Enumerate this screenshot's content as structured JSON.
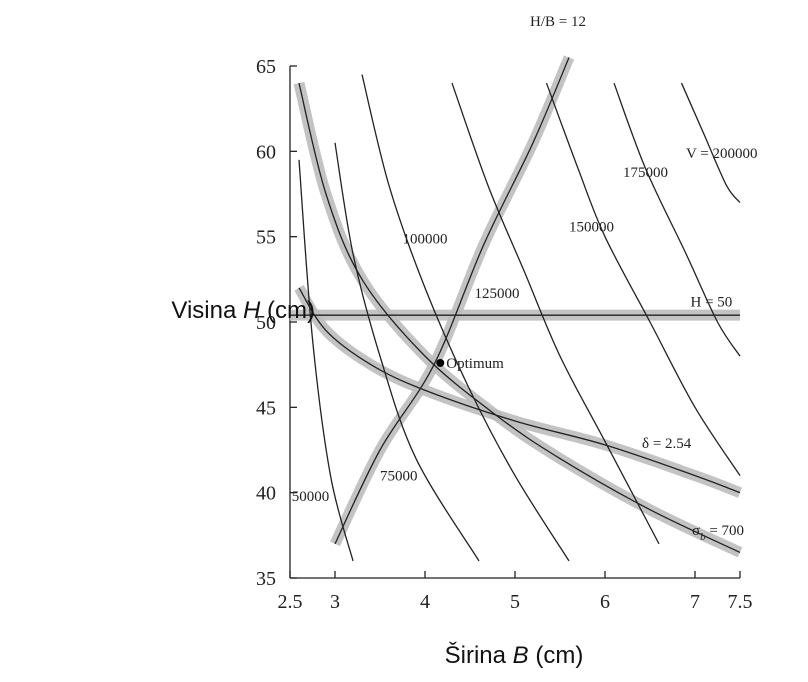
{
  "chart_data": {
    "type": "line",
    "title": "",
    "xlabel": {
      "prefix": "Širina ",
      "var": "B",
      "suffix": " (cm)"
    },
    "ylabel": {
      "prefix": "Visina ",
      "var": "H",
      "suffix": " (cm)"
    },
    "xlim": [
      2.5,
      7.5
    ],
    "ylim": [
      35,
      65
    ],
    "x_ticks": [
      {
        "value": 2.5,
        "label": "2.5"
      },
      {
        "value": 3,
        "label": "3"
      },
      {
        "value": 4,
        "label": "4"
      },
      {
        "value": 5,
        "label": "5"
      },
      {
        "value": 6,
        "label": "6"
      },
      {
        "value": 7,
        "label": "7"
      },
      {
        "value": 7.5,
        "label": "7.5"
      }
    ],
    "y_ticks": [
      {
        "value": 35,
        "label": "35"
      },
      {
        "value": 40,
        "label": "40"
      },
      {
        "value": 45,
        "label": "45"
      },
      {
        "value": 50,
        "label": "50"
      },
      {
        "value": 55,
        "label": "55"
      },
      {
        "value": 60,
        "label": "60"
      },
      {
        "value": 65,
        "label": "65"
      }
    ],
    "volume_contours": [
      {
        "label": "50000",
        "points": [
          [
            2.6,
            59.5
          ],
          [
            2.75,
            49
          ],
          [
            2.95,
            41
          ],
          [
            3.2,
            36
          ]
        ]
      },
      {
        "label": "75000",
        "points": [
          [
            3.0,
            60.5
          ],
          [
            3.2,
            54
          ],
          [
            3.5,
            48
          ],
          [
            3.9,
            42
          ],
          [
            4.6,
            36
          ]
        ]
      },
      {
        "label": "100000",
        "points": [
          [
            3.3,
            64.5
          ],
          [
            3.6,
            58
          ],
          [
            4.0,
            52
          ],
          [
            4.5,
            46
          ],
          [
            5.0,
            41
          ],
          [
            5.6,
            36
          ]
        ]
      },
      {
        "label": "125000",
        "points": [
          [
            4.3,
            64
          ],
          [
            4.7,
            58
          ],
          [
            5.1,
            53
          ],
          [
            5.5,
            48
          ],
          [
            6.0,
            43
          ],
          [
            6.6,
            37
          ]
        ]
      },
      {
        "label": "150000",
        "points": [
          [
            5.35,
            64
          ],
          [
            5.7,
            59
          ],
          [
            6.0,
            55
          ],
          [
            6.5,
            50
          ],
          [
            7.0,
            45
          ],
          [
            7.5,
            41
          ]
        ]
      },
      {
        "label": "175000",
        "points": [
          [
            6.1,
            64
          ],
          [
            6.45,
            59
          ],
          [
            6.9,
            54
          ],
          [
            7.25,
            50
          ],
          [
            7.5,
            48
          ]
        ]
      },
      {
        "label": "V = 200000",
        "points": [
          [
            6.85,
            64
          ],
          [
            7.1,
            61
          ],
          [
            7.35,
            58
          ],
          [
            7.5,
            57
          ]
        ]
      }
    ],
    "constraints": [
      {
        "label": "H/B = 12",
        "points": [
          [
            3.0,
            37
          ],
          [
            3.5,
            42.5
          ],
          [
            4.1,
            47.5
          ],
          [
            4.65,
            54.5
          ],
          [
            5.2,
            60.5
          ],
          [
            5.6,
            65.5
          ]
        ]
      },
      {
        "label": "H = 50",
        "points": [
          [
            2.5,
            50.4
          ],
          [
            7.5,
            50.4
          ]
        ]
      },
      {
        "label": "δ = 2.54",
        "points": [
          [
            2.6,
            52
          ],
          [
            2.9,
            49.5
          ],
          [
            3.4,
            47.5
          ],
          [
            4.0,
            46
          ],
          [
            5.0,
            44.2
          ],
          [
            6.0,
            42.8
          ],
          [
            7.0,
            41
          ],
          [
            7.5,
            40
          ]
        ]
      },
      {
        "label": "σb = 700",
        "points": [
          [
            2.6,
            64
          ],
          [
            2.9,
            57.5
          ],
          [
            3.3,
            52.5
          ],
          [
            4.0,
            48
          ],
          [
            4.8,
            44.5
          ],
          [
            5.5,
            42
          ],
          [
            6.5,
            39
          ],
          [
            7.5,
            36.5
          ]
        ]
      }
    ],
    "optimum": {
      "label": "Optimum",
      "x": 4.17,
      "y": 47.6
    },
    "sigma_label": {
      "base": "σ",
      "sub": "b",
      "rest": " =  700"
    },
    "delta_label": "δ  =  2.54"
  }
}
